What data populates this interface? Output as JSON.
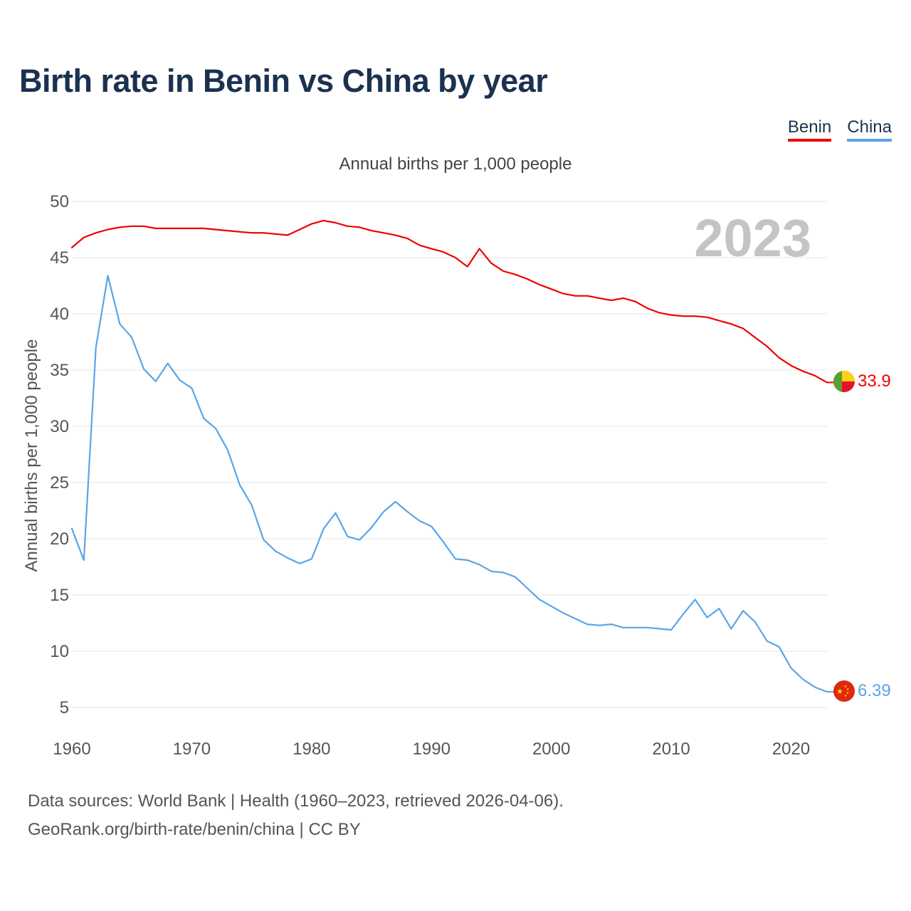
{
  "page": {
    "title": "Birth rate in Benin vs China by year",
    "subtitle": "Annual births per 1,000 people",
    "footer_line1": "Data sources: World Bank | Health (1960–2023, retrieved 2026-04-06).",
    "footer_line2": "GeoRank.org/birth-rate/benin/china | CC BY"
  },
  "legend": [
    {
      "name": "Benin",
      "color": "#ee0000"
    },
    {
      "name": "China",
      "color": "#5aa5e6"
    }
  ],
  "chart_data": {
    "type": "line",
    "title": "Birth rate in Benin vs China by year",
    "subtitle": "Annual births per 1,000 people",
    "ylabel": "Annual births per 1,000 people",
    "xlabel": "",
    "year_watermark": "2023",
    "xlim": [
      1960,
      2023
    ],
    "ylim": [
      5,
      50
    ],
    "x_ticks": [
      1960,
      1970,
      1980,
      1990,
      2000,
      2010,
      2020
    ],
    "y_ticks": [
      5,
      10,
      15,
      20,
      25,
      30,
      35,
      40,
      45,
      50
    ],
    "grid": true,
    "legend_position": "top-right",
    "x": [
      1960,
      1961,
      1962,
      1963,
      1964,
      1965,
      1966,
      1967,
      1968,
      1969,
      1970,
      1971,
      1972,
      1973,
      1974,
      1975,
      1976,
      1977,
      1978,
      1979,
      1980,
      1981,
      1982,
      1983,
      1984,
      1985,
      1986,
      1987,
      1988,
      1989,
      1990,
      1991,
      1992,
      1993,
      1994,
      1995,
      1996,
      1997,
      1998,
      1999,
      2000,
      2001,
      2002,
      2003,
      2004,
      2005,
      2006,
      2007,
      2008,
      2009,
      2010,
      2011,
      2012,
      2013,
      2014,
      2015,
      2016,
      2017,
      2018,
      2019,
      2020,
      2021,
      2022,
      2023
    ],
    "series": [
      {
        "name": "Benin",
        "color": "#ee0000",
        "end_label": "33.9",
        "flag": "benin-flag",
        "values": [
          45.9,
          46.8,
          47.2,
          47.5,
          47.7,
          47.8,
          47.8,
          47.6,
          47.6,
          47.6,
          47.6,
          47.6,
          47.5,
          47.4,
          47.3,
          47.2,
          47.2,
          47.1,
          47.0,
          47.5,
          48.0,
          48.3,
          48.1,
          47.8,
          47.7,
          47.4,
          47.2,
          47.0,
          46.7,
          46.1,
          45.8,
          45.5,
          45.0,
          44.2,
          45.8,
          44.5,
          43.8,
          43.5,
          43.1,
          42.6,
          42.2,
          41.8,
          41.6,
          41.6,
          41.4,
          41.2,
          41.4,
          41.1,
          40.5,
          40.1,
          39.9,
          39.8,
          39.8,
          39.7,
          39.4,
          39.1,
          38.7,
          37.9,
          37.1,
          36.1,
          35.4,
          34.9,
          34.5,
          33.9
        ]
      },
      {
        "name": "China",
        "color": "#5aa5e6",
        "end_label": "6.39",
        "flag": "china-flag",
        "values": [
          20.9,
          18.1,
          37.0,
          43.4,
          39.1,
          37.9,
          35.1,
          34.0,
          35.6,
          34.1,
          33.4,
          30.7,
          29.8,
          27.9,
          24.8,
          23.0,
          19.9,
          18.9,
          18.3,
          17.8,
          18.2,
          20.9,
          22.3,
          20.2,
          19.9,
          21.0,
          22.4,
          23.3,
          22.4,
          21.6,
          21.1,
          19.7,
          18.2,
          18.1,
          17.7,
          17.1,
          17.0,
          16.6,
          15.6,
          14.6,
          14.0,
          13.4,
          12.9,
          12.4,
          12.3,
          12.4,
          12.1,
          12.1,
          12.1,
          12.0,
          11.9,
          13.3,
          14.6,
          13.0,
          13.8,
          12.0,
          13.6,
          12.6,
          10.9,
          10.4,
          8.5,
          7.5,
          6.8,
          6.39
        ]
      }
    ]
  }
}
